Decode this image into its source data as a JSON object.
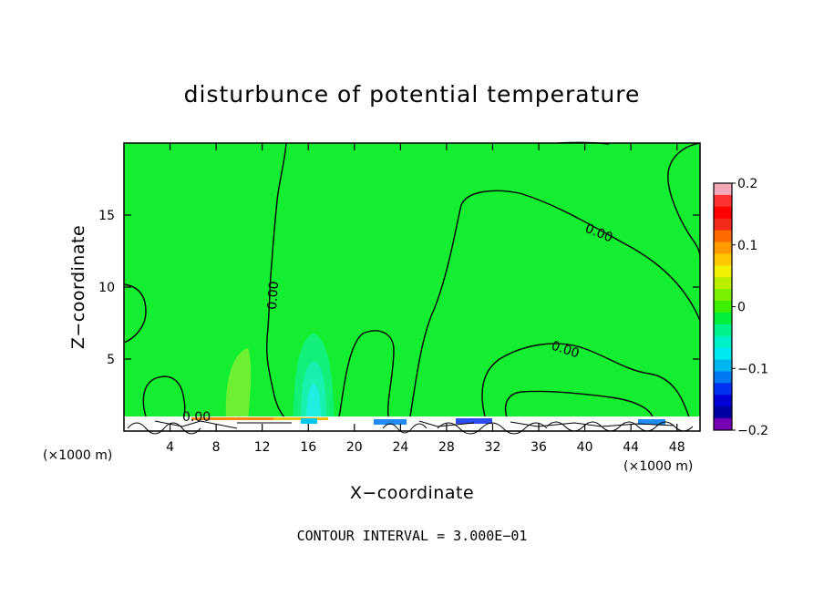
{
  "chart_data": {
    "type": "heatmap",
    "title": "disturbunce of potential temperature",
    "xlabel": "X−coordinate",
    "ylabel": "Z−coordinate",
    "x_unit": "(×1000 m)",
    "z_unit": "(×1000 m)",
    "xlim": [
      0,
      50
    ],
    "ylim": [
      0,
      20
    ],
    "xticks": [
      "4",
      "8",
      "12",
      "16",
      "20",
      "24",
      "28",
      "32",
      "36",
      "40",
      "44",
      "48"
    ],
    "yticks": [
      "5",
      "10",
      "15"
    ],
    "colorbar": {
      "min": -0.2,
      "max": 0.2,
      "tick_labels": [
        "0.2",
        "0.1",
        "0",
        "−0.1",
        "−0.2"
      ],
      "colors": [
        "#f7a8b8",
        "#ff3030",
        "#ff0000",
        "#f22a1a",
        "#ff6a00",
        "#ff9a00",
        "#ffc800",
        "#f0f000",
        "#b8f000",
        "#78f000",
        "#3cf000",
        "#00f03c",
        "#00f08c",
        "#00f0c8",
        "#00e8f0",
        "#00b4f0",
        "#0078f0",
        "#0030f0",
        "#0000d8",
        "#0000a0",
        "#7800b4"
      ]
    },
    "contour_labels": [
      "0.00",
      "0.00",
      "0.00",
      "0.00"
    ],
    "contour_interval_text": "CONTOUR INTERVAL = 3.000E−01"
  }
}
